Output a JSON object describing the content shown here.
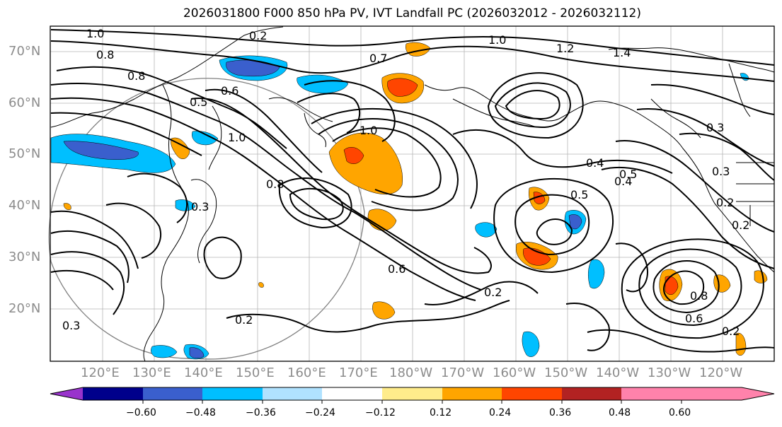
{
  "title": "2026031800 F000 850 hPa PV, IVT Landfall PC (2026032012 - 2026032112)",
  "map": {
    "lat_labels": [
      "70°N",
      "60°N",
      "50°N",
      "40°N",
      "30°N",
      "20°N"
    ],
    "lon_labels": [
      "120°E",
      "130°E",
      "140°E",
      "150°E",
      "160°E",
      "170°E",
      "180°W",
      "170°W",
      "160°W",
      "150°W",
      "140°W",
      "130°W",
      "120°W"
    ],
    "contour_labels": [
      "1.0",
      "0.8",
      "0.2",
      "0.6",
      "0.5",
      "0.8",
      "1.0",
      "0.3",
      "0.8",
      "1.0",
      "0.4",
      "0.5",
      "0.5",
      "0.3",
      "0.2",
      "0.2",
      "0.3",
      "0.6",
      "0.2",
      "0.8",
      "0.6",
      "0.2",
      "0.3",
      "0.2",
      "0.4",
      "1.4",
      "1.2",
      "1.0",
      "0.7"
    ]
  },
  "colorbar": {
    "colors": [
      "#9933cc",
      "#00008b",
      "#3a5fcd",
      "#00bfff",
      "#b0e2ff",
      "#ffffff",
      "#ffec8b",
      "#ffa500",
      "#ff4500",
      "#b22222",
      "#ff82ab"
    ],
    "ticks": [
      "−0.60",
      "−0.48",
      "−0.36",
      "−0.24",
      "−0.12",
      "0.12",
      "0.24",
      "0.36",
      "0.48",
      "0.60"
    ]
  }
}
